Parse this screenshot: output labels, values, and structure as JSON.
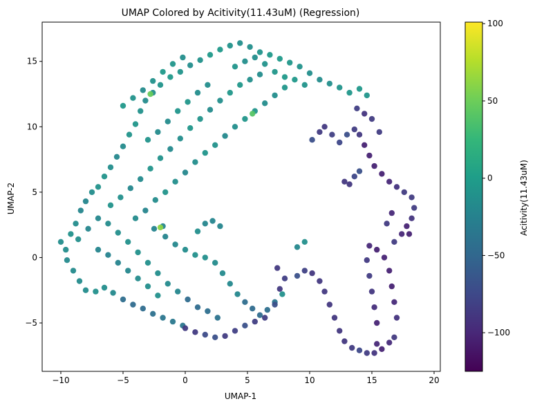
{
  "chart_data": {
    "type": "scatter",
    "title": "UMAP Colored by Acitivity(11.43uM) (Regression)",
    "xlabel": "UMAP-1",
    "ylabel": "UMAP-2",
    "xlim": [
      -11.5,
      20.5
    ],
    "ylim": [
      -8.7,
      18.0
    ],
    "xticks": [
      -10,
      -5,
      0,
      5,
      10,
      15,
      20
    ],
    "yticks": [
      -5,
      0,
      5,
      10,
      15
    ],
    "grid": false,
    "legend": "none",
    "colorbar": {
      "label": "Acitivity(11.43uM)",
      "colormap": "viridis",
      "range": [
        -125,
        101
      ],
      "ticks": [
        100,
        50,
        0,
        -50,
        -100
      ],
      "tick_labels": [
        "100",
        "50",
        "0",
        "−50",
        "−100"
      ],
      "colors": [
        "#440154",
        "#482878",
        "#3e4989",
        "#31688e",
        "#26828e",
        "#1f9e89",
        "#35b779",
        "#6ece58",
        "#b5de2b",
        "#fde725"
      ]
    },
    "series": [
      {
        "region": "left lobe (teal/green)",
        "points": [
          [
            -10.0,
            1.2
          ],
          [
            -9.6,
            0.6
          ],
          [
            -9.2,
            1.8
          ],
          [
            -8.8,
            2.6
          ],
          [
            -8.4,
            3.6
          ],
          [
            -8.0,
            4.3
          ],
          [
            -7.5,
            5.0
          ],
          [
            -7.0,
            5.4
          ],
          [
            -6.5,
            6.2
          ],
          [
            -6.0,
            6.9
          ],
          [
            -5.5,
            7.7
          ],
          [
            -5.0,
            8.5
          ],
          [
            -4.5,
            9.4
          ],
          [
            -4.0,
            10.2
          ],
          [
            -3.6,
            11.2
          ],
          [
            -3.2,
            12.0
          ],
          [
            -2.6,
            12.6
          ],
          [
            -2.0,
            13.2
          ],
          [
            -1.2,
            13.8
          ],
          [
            -0.4,
            14.2
          ],
          [
            0.4,
            14.7
          ],
          [
            1.2,
            15.1
          ],
          [
            2.0,
            15.5
          ],
          [
            2.8,
            15.9
          ],
          [
            3.6,
            16.2
          ],
          [
            4.4,
            16.4
          ],
          [
            5.2,
            16.1
          ],
          [
            6.0,
            15.7
          ],
          [
            6.8,
            15.5
          ],
          [
            7.6,
            15.2
          ],
          [
            8.4,
            14.9
          ],
          [
            9.2,
            14.6
          ],
          [
            10.0,
            14.1
          ],
          [
            10.8,
            13.6
          ],
          [
            11.6,
            13.3
          ],
          [
            12.4,
            13.0
          ],
          [
            13.2,
            12.6
          ],
          [
            14.0,
            12.9
          ],
          [
            14.6,
            12.4
          ],
          [
            -9.5,
            -0.2
          ],
          [
            -9.0,
            -1.0
          ],
          [
            -8.5,
            -1.8
          ],
          [
            -8.0,
            -2.5
          ],
          [
            -7.2,
            -2.6
          ],
          [
            -6.5,
            -2.3
          ],
          [
            -5.8,
            -2.7
          ],
          [
            -5.0,
            -3.2
          ],
          [
            -4.2,
            -3.6
          ],
          [
            -3.4,
            -3.9
          ],
          [
            -2.6,
            -4.3
          ],
          [
            -1.8,
            -4.6
          ],
          [
            -1.0,
            -4.9
          ],
          [
            -0.2,
            -5.2
          ],
          [
            -8.6,
            1.4
          ],
          [
            -7.8,
            2.2
          ],
          [
            -7.0,
            3.0
          ],
          [
            -6.2,
            2.6
          ],
          [
            -5.4,
            1.9
          ],
          [
            -4.6,
            1.2
          ],
          [
            -3.8,
            0.4
          ],
          [
            -3.0,
            -0.4
          ],
          [
            -2.2,
            -1.2
          ],
          [
            -1.4,
            -2.0
          ],
          [
            -0.6,
            -2.6
          ],
          [
            0.2,
            -3.2
          ],
          [
            1.0,
            -3.8
          ],
          [
            1.8,
            -4.1
          ],
          [
            2.6,
            -4.6
          ],
          [
            -6.0,
            4.0
          ],
          [
            -5.2,
            4.6
          ],
          [
            -4.4,
            5.3
          ],
          [
            -3.6,
            6.0
          ],
          [
            -2.8,
            6.8
          ],
          [
            -2.0,
            7.6
          ],
          [
            -1.2,
            8.3
          ],
          [
            -0.4,
            9.1
          ],
          [
            0.4,
            9.9
          ],
          [
            1.2,
            10.6
          ],
          [
            2.0,
            11.3
          ],
          [
            2.8,
            12.0
          ],
          [
            3.6,
            12.6
          ],
          [
            4.4,
            13.2
          ],
          [
            5.2,
            13.6
          ],
          [
            6.0,
            14.0
          ],
          [
            -4.0,
            3.0
          ],
          [
            -3.2,
            3.6
          ],
          [
            -2.4,
            4.4
          ],
          [
            -1.6,
            5.0
          ],
          [
            -0.8,
            5.8
          ],
          [
            0.0,
            6.5
          ],
          [
            0.8,
            7.3
          ],
          [
            1.6,
            8.0
          ],
          [
            2.4,
            8.6
          ],
          [
            3.2,
            9.3
          ],
          [
            4.0,
            10.0
          ],
          [
            4.8,
            10.6
          ],
          [
            5.6,
            11.2
          ],
          [
            6.4,
            11.8
          ],
          [
            7.2,
            12.4
          ],
          [
            8.0,
            13.0
          ],
          [
            -2.5,
            2.2
          ],
          [
            -1.6,
            1.6
          ],
          [
            -0.8,
            1.0
          ],
          [
            0.0,
            0.6
          ],
          [
            0.8,
            0.2
          ],
          [
            1.6,
            0.0
          ],
          [
            2.4,
            -0.4
          ],
          [
            3.0,
            -1.2
          ],
          [
            3.6,
            -2.0
          ],
          [
            4.2,
            -2.8
          ],
          [
            4.8,
            -3.4
          ],
          [
            5.4,
            -3.9
          ],
          [
            6.0,
            -4.4
          ],
          [
            6.6,
            -4.0
          ],
          [
            7.2,
            -3.4
          ],
          [
            7.8,
            -2.8
          ],
          [
            -3.0,
            9.0
          ],
          [
            -2.2,
            9.6
          ],
          [
            -1.4,
            10.4
          ],
          [
            -0.6,
            11.2
          ],
          [
            0.2,
            11.9
          ],
          [
            1.0,
            12.6
          ],
          [
            1.8,
            13.2
          ],
          [
            -5.0,
            11.6
          ],
          [
            -4.2,
            12.2
          ],
          [
            -3.4,
            12.8
          ],
          [
            -2.6,
            13.5
          ],
          [
            -1.8,
            14.2
          ],
          [
            -1.0,
            14.8
          ],
          [
            -0.2,
            15.3
          ],
          [
            4.0,
            14.6
          ],
          [
            4.8,
            15.0
          ],
          [
            5.6,
            15.3
          ],
          [
            6.4,
            14.8
          ],
          [
            7.2,
            14.2
          ],
          [
            8.0,
            13.8
          ],
          [
            8.8,
            13.6
          ],
          [
            9.6,
            13.2
          ],
          [
            -7.0,
            0.6
          ],
          [
            -6.2,
            0.2
          ],
          [
            -5.4,
            -0.4
          ],
          [
            -4.6,
            -1.0
          ],
          [
            -3.8,
            -1.6
          ],
          [
            -3.0,
            -2.2
          ],
          [
            -2.2,
            -2.9
          ],
          [
            1.0,
            2.0
          ],
          [
            1.6,
            2.6
          ],
          [
            2.2,
            2.8
          ],
          [
            2.8,
            2.4
          ],
          [
            -1.8,
            2.4
          ],
          [
            9.0,
            0.8
          ],
          [
            9.6,
            1.2
          ]
        ]
      },
      {
        "region": "lower loop (blue/purple)",
        "points": [
          [
            0.0,
            -5.4
          ],
          [
            0.8,
            -5.7
          ],
          [
            1.6,
            -5.9
          ],
          [
            2.4,
            -6.1
          ],
          [
            3.2,
            -6.0
          ],
          [
            4.0,
            -5.6
          ],
          [
            4.8,
            -5.2
          ],
          [
            5.6,
            -4.9
          ],
          [
            6.4,
            -4.6
          ],
          [
            7.2,
            -3.6
          ],
          [
            7.6,
            -2.4
          ],
          [
            8.0,
            -1.6
          ],
          [
            7.4,
            -0.8
          ],
          [
            9.0,
            -1.4
          ],
          [
            9.6,
            -1.0
          ],
          [
            10.2,
            -1.2
          ],
          [
            10.8,
            -1.8
          ],
          [
            11.2,
            -2.6
          ],
          [
            11.6,
            -3.6
          ],
          [
            12.0,
            -4.6
          ],
          [
            12.4,
            -5.6
          ],
          [
            12.8,
            -6.4
          ],
          [
            13.4,
            -6.9
          ],
          [
            14.0,
            -7.1
          ],
          [
            14.6,
            -7.3
          ],
          [
            15.2,
            -7.3
          ],
          [
            15.8,
            -7.0
          ],
          [
            16.4,
            -6.5
          ],
          [
            16.8,
            -6.1
          ],
          [
            15.4,
            -6.6
          ],
          [
            17.0,
            -4.6
          ],
          [
            16.8,
            -3.4
          ],
          [
            16.6,
            -2.2
          ],
          [
            16.4,
            -1.0
          ],
          [
            16.0,
            0.0
          ],
          [
            15.4,
            0.6
          ],
          [
            14.8,
            0.9
          ],
          [
            14.6,
            -0.2
          ],
          [
            14.8,
            -1.4
          ],
          [
            15.0,
            -2.6
          ],
          [
            15.2,
            -3.8
          ],
          [
            15.4,
            -5.0
          ],
          [
            16.8,
            1.2
          ],
          [
            17.4,
            1.8
          ],
          [
            17.8,
            2.4
          ],
          [
            18.2,
            3.0
          ],
          [
            18.4,
            3.8
          ],
          [
            18.2,
            4.6
          ],
          [
            17.6,
            5.0
          ],
          [
            17.0,
            5.4
          ],
          [
            16.4,
            5.8
          ],
          [
            15.8,
            6.4
          ],
          [
            15.2,
            7.0
          ],
          [
            14.8,
            7.8
          ],
          [
            14.4,
            8.6
          ],
          [
            14.0,
            9.4
          ],
          [
            13.6,
            9.8
          ],
          [
            13.0,
            9.4
          ],
          [
            12.4,
            8.8
          ],
          [
            11.8,
            9.4
          ],
          [
            11.2,
            10.0
          ],
          [
            10.8,
            9.6
          ],
          [
            10.2,
            9.0
          ],
          [
            13.2,
            5.6
          ],
          [
            13.6,
            6.2
          ],
          [
            14.0,
            6.6
          ],
          [
            12.8,
            5.8
          ],
          [
            18.0,
            1.8
          ],
          [
            16.2,
            2.6
          ],
          [
            16.6,
            3.4
          ],
          [
            13.8,
            11.4
          ],
          [
            14.4,
            11.0
          ],
          [
            15.0,
            10.6
          ],
          [
            15.6,
            9.6
          ]
        ]
      },
      {
        "region": "highlighted high-activity points",
        "points": [
          [
            -2.0,
            2.3
          ],
          [
            -2.8,
            12.5
          ],
          [
            5.4,
            11.0
          ]
        ],
        "values": [
          62,
          48,
          40
        ]
      }
    ]
  }
}
